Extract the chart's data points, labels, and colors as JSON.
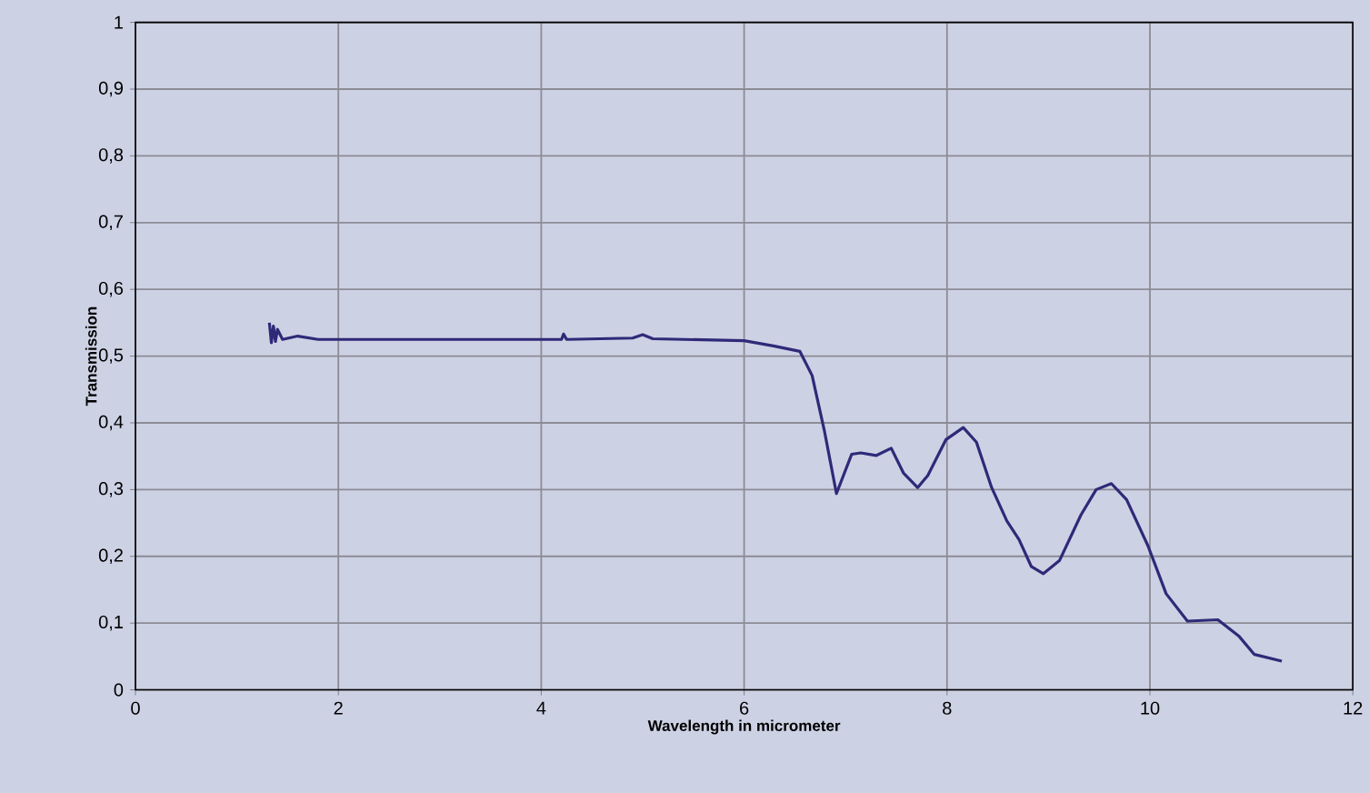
{
  "chart_data": {
    "type": "line",
    "xlabel": "Wavelength in micrometer",
    "ylabel": "Transmission",
    "xlim": [
      0,
      12
    ],
    "xticks": [
      0,
      2,
      4,
      6,
      8,
      10,
      12
    ],
    "ylim": [
      0,
      1
    ],
    "yticks": [
      0,
      {
        "value": 0.1,
        "label": "0,1"
      },
      {
        "value": 0.2,
        "label": "0,2"
      },
      {
        "value": 0.3,
        "label": "0,3"
      },
      {
        "value": 0.4,
        "label": "0,4"
      },
      {
        "value": 0.5,
        "label": "0,5"
      },
      {
        "value": 0.6,
        "label": "0,6"
      },
      {
        "value": 0.7,
        "label": "0,7"
      },
      {
        "value": 0.8,
        "label": "0,8"
      },
      {
        "value": 0.9,
        "label": "0,9"
      },
      1
    ],
    "grid": true,
    "x": [
      1.32,
      1.34,
      1.36,
      1.38,
      1.4,
      1.45,
      1.6,
      1.8,
      3.0,
      4.2,
      4.22,
      4.25,
      4.9,
      5.0,
      5.1,
      6.0,
      6.3,
      6.55,
      6.67,
      6.79,
      6.91,
      7.06,
      7.15,
      7.3,
      7.45,
      7.57,
      7.71,
      7.81,
      7.99,
      8.16,
      8.29,
      8.44,
      8.59,
      8.71,
      8.83,
      8.95,
      9.11,
      9.32,
      9.47,
      9.62,
      9.77,
      9.98,
      10.16,
      10.37,
      10.67,
      10.88,
      11.03,
      11.3
    ],
    "series": [
      {
        "color": "#2e2a78",
        "values": [
          0.55,
          0.52,
          0.545,
          0.522,
          0.54,
          0.525,
          0.53,
          0.525,
          0.525,
          0.525,
          0.533,
          0.525,
          0.527,
          0.532,
          0.526,
          0.523,
          0.515,
          0.507,
          0.471,
          0.389,
          0.294,
          0.353,
          0.355,
          0.351,
          0.362,
          0.325,
          0.303,
          0.321,
          0.375,
          0.393,
          0.371,
          0.303,
          0.253,
          0.225,
          0.185,
          0.174,
          0.194,
          0.262,
          0.3,
          0.309,
          0.285,
          0.216,
          0.144,
          0.103,
          0.105,
          0.08,
          0.053,
          0.043
        ]
      }
    ]
  }
}
